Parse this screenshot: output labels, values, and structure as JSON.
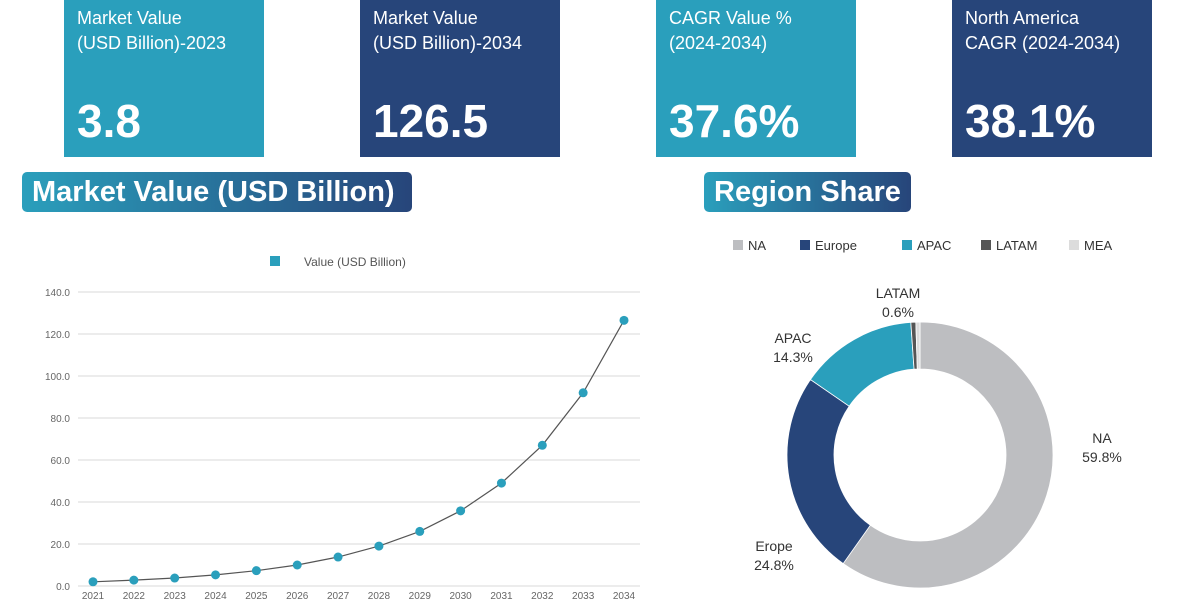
{
  "cards": [
    {
      "label1": "Market Value",
      "label2": "(USD Billion)-2023",
      "value": "3.8",
      "color": "#2a9fbc"
    },
    {
      "label1": "Market Value",
      "label2": "(USD Billion)-2034",
      "value": "126.5",
      "color": "#27457a"
    },
    {
      "label1": "CAGR Value %",
      "label2": "(2024-2034)",
      "value": "37.6%",
      "color": "#2a9fbc"
    },
    {
      "label1": "North America",
      "label2": "CAGR (2024-2034)",
      "value": "38.1%",
      "color": "#27457a"
    }
  ],
  "chart_data": [
    {
      "type": "line",
      "title": "Market Value (USD Billion)",
      "legend": "Value (USD Billion)",
      "legend_position": "top",
      "grid": true,
      "x": [
        "2021",
        "2022",
        "2023",
        "2024",
        "2025",
        "2026",
        "2027",
        "2028",
        "2029",
        "2030",
        "2031",
        "2032",
        "2033",
        "2034"
      ],
      "values": [
        2.0,
        2.8,
        3.8,
        5.3,
        7.3,
        10.0,
        13.8,
        19.0,
        26.0,
        35.8,
        49.0,
        67.0,
        92.0,
        126.5
      ],
      "yticks": [
        "0.0",
        "20.0",
        "40.0",
        "60.0",
        "80.0",
        "100.0",
        "120.0",
        "140.0"
      ],
      "ylim": [
        0,
        140
      ],
      "color": "#2a9fbc"
    },
    {
      "type": "pie",
      "title": "Region Share",
      "legend_position": "top",
      "legend": [
        "NA",
        "Europe",
        "APAC",
        "LATAM",
        "MEA"
      ],
      "slices": [
        {
          "name": "NA",
          "value": 59.8,
          "label": "NA",
          "pct": "59.8%",
          "color": "#bdbec1"
        },
        {
          "name": "Europe",
          "value": 24.8,
          "label": "Erope",
          "pct": "24.8%",
          "color": "#27457a"
        },
        {
          "name": "APAC",
          "value": 14.3,
          "label": "APAC",
          "pct": "14.3%",
          "color": "#2a9fbc"
        },
        {
          "name": "LATAM",
          "value": 0.6,
          "label": "LATAM",
          "pct": "0.6%",
          "color": "#555555"
        },
        {
          "name": "MEA",
          "value": 0.5,
          "color": "#dcdcdc"
        }
      ]
    }
  ]
}
